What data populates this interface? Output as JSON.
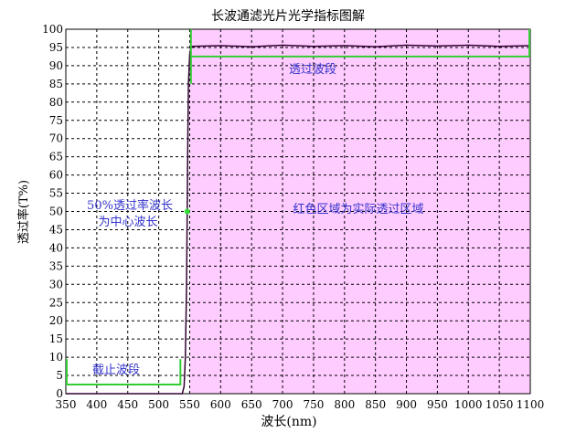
{
  "chart_data": {
    "type": "area",
    "title": "长波通滤光片光学指标图解",
    "xlabel": "波长(nm)",
    "ylabel": "透过率(T%)",
    "xlim": [
      350,
      1100
    ],
    "ylim": [
      0,
      100
    ],
    "xticks": [
      350,
      400,
      450,
      500,
      550,
      600,
      650,
      700,
      750,
      800,
      850,
      900,
      950,
      1000,
      1050,
      1100
    ],
    "yticks": [
      0,
      5,
      10,
      15,
      20,
      25,
      30,
      35,
      40,
      45,
      50,
      55,
      60,
      65,
      70,
      75,
      80,
      85,
      90,
      95,
      100
    ],
    "grid": true,
    "series": [
      {
        "x": [
          350,
          538,
          541,
          543,
          545,
          546,
          547,
          548,
          550,
          552,
          555,
          600,
          650,
          700,
          750,
          800,
          850,
          900,
          950,
          1000,
          1050,
          1100
        ],
        "y": [
          0,
          0,
          2,
          10,
          30,
          50,
          70,
          85,
          93,
          95,
          95.3,
          95.5,
          95.2,
          95.6,
          95.3,
          95.5,
          95.2,
          95.6,
          95.4,
          95.6,
          95.3,
          95.5
        ]
      }
    ],
    "highlight_color": "#ffccff",
    "bracket_color": "#33cc33",
    "curve_color": "#330033",
    "annotations": {
      "pass_band": "透过波段",
      "cut_band": "截止波段",
      "center": "50%透过率波长",
      "center2": "为中心波长",
      "region": "红色区域为实际透过区域"
    },
    "center_point": {
      "x": 546,
      "y": 50
    },
    "cut_bracket": {
      "x": [
        350,
        535
      ],
      "y": 2.5,
      "top": 9.5
    },
    "pass_bracket": {
      "x": [
        552,
        1100
      ],
      "y": 92.5
    }
  }
}
